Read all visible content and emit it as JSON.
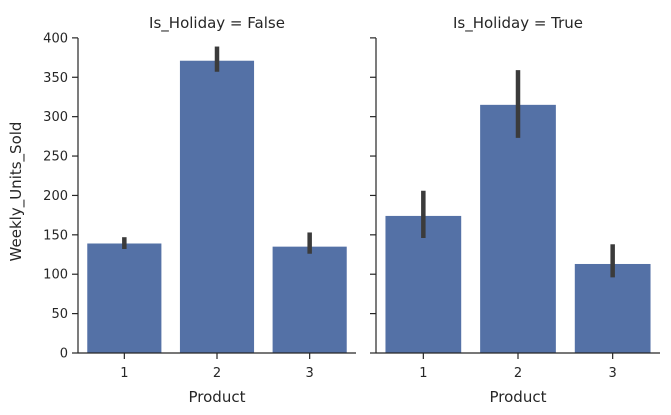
{
  "chart_data": {
    "type": "bar",
    "ylabel": "Weekly_Units_Sold",
    "xlabel": "Product",
    "ylim": [
      0,
      410
    ],
    "yticks": [
      0,
      50,
      100,
      150,
      200,
      250,
      300,
      350,
      400
    ],
    "categories": [
      "1",
      "2",
      "3"
    ],
    "bar_color": "#5471a6",
    "errorbar_color": "#3b3b3b",
    "grid": false,
    "shared_y": true,
    "facets": [
      {
        "title": "Is_Holiday = False",
        "values": [
          139,
          371,
          135
        ],
        "ci_low": [
          132,
          357,
          126
        ],
        "ci_high": [
          147,
          389,
          153
        ]
      },
      {
        "title": "Is_Holiday = True",
        "values": [
          174,
          315,
          113
        ],
        "ci_low": [
          146,
          273,
          96
        ],
        "ci_high": [
          206,
          359,
          138
        ]
      }
    ]
  }
}
